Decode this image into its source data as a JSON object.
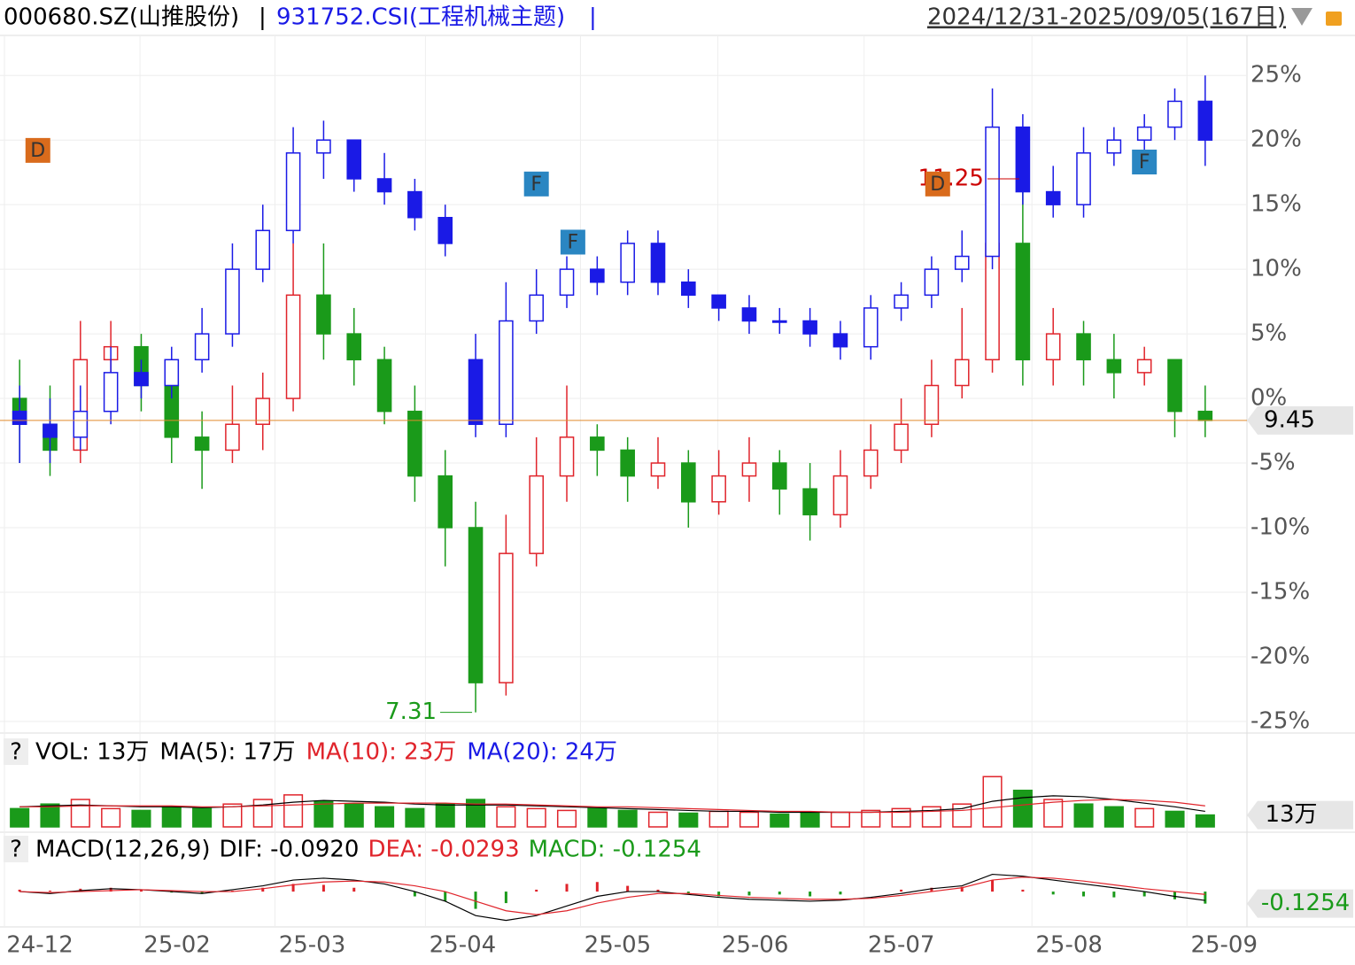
{
  "header": {
    "separator": "|",
    "range": "2024/12/31-2025/09/05(167日)",
    "help": "?"
  },
  "chart_data": [
    {
      "type": "candlestick",
      "series": [
        {
          "name": "000680.SZ(山推股份)",
          "color": "#e0242b",
          "down_color": "#1a9a1a",
          "open": [
            0,
            -2,
            -4,
            3,
            4,
            1,
            -3,
            -4,
            -2,
            0,
            8,
            5,
            3,
            -1,
            -6,
            -10,
            -22,
            -12,
            -6,
            -3,
            -4,
            -6,
            -5,
            -8,
            -6,
            -5,
            -7,
            -9,
            -6,
            -4,
            -2,
            1,
            3,
            12,
            3,
            5,
            3,
            2,
            3,
            -1
          ],
          "high": [
            3,
            1,
            6,
            6,
            5,
            3,
            -1,
            1,
            2,
            12,
            12,
            7,
            4,
            1,
            -4,
            -8,
            -9,
            -3,
            1,
            -2,
            -3,
            -3,
            -4,
            -4,
            -3,
            -4,
            -5,
            -4,
            -2,
            0,
            3,
            7,
            13,
            17,
            7,
            6,
            5,
            4,
            3,
            1
          ],
          "low": [
            -5,
            -6,
            -5,
            2,
            -1,
            -5,
            -7,
            -5,
            -4,
            -1,
            3,
            1,
            -2,
            -8,
            -13,
            -24.3,
            -23,
            -13,
            -8,
            -6,
            -8,
            -7,
            -10,
            -9,
            -8,
            -9,
            -11,
            -10,
            -7,
            -5,
            -3,
            0,
            2,
            1,
            1,
            1,
            0,
            1,
            -3,
            -3
          ],
          "close": [
            -2,
            -4,
            3,
            4,
            1,
            -3,
            -4,
            -2,
            0,
            8,
            5,
            3,
            -1,
            -6,
            -10,
            -22,
            -12,
            -6,
            -3,
            -4,
            -6,
            -5,
            -8,
            -6,
            -5,
            -7,
            -9,
            -6,
            -4,
            -2,
            1,
            3,
            12,
            3,
            5,
            3,
            2,
            3,
            -1,
            -1.7
          ]
        },
        {
          "name": "931752.CSI(工程机械主题)",
          "color": "#1a1ae6",
          "down_color": "#1a1ae6",
          "open": [
            -1,
            -2,
            -3,
            -1,
            2,
            1,
            3,
            5,
            10,
            13,
            19,
            20,
            17,
            16,
            14,
            3,
            -2,
            6,
            8,
            10,
            9,
            12,
            9,
            8,
            7,
            6,
            6,
            5,
            4,
            7,
            8,
            10,
            11,
            21,
            16,
            15,
            19,
            20,
            21,
            23
          ],
          "high": [
            1,
            0,
            1,
            4,
            3,
            4,
            7,
            12,
            15,
            21,
            21.5,
            20,
            19,
            17,
            15,
            5,
            9,
            10,
            11,
            11,
            13,
            13,
            10,
            8,
            8,
            7,
            7,
            6,
            8,
            9,
            11,
            13,
            24,
            22,
            18,
            21,
            21,
            22,
            24,
            25
          ],
          "low": [
            -5,
            -5,
            -4,
            -2,
            0,
            0,
            2,
            4,
            9,
            12,
            17,
            16,
            15,
            13,
            11,
            -3,
            -3,
            5,
            7,
            8,
            8,
            8,
            7,
            6,
            5,
            5,
            4,
            3,
            3,
            6,
            7,
            9,
            10,
            15,
            14,
            14,
            18,
            19,
            20,
            18
          ],
          "close": [
            -2,
            -3,
            -1,
            2,
            1,
            3,
            5,
            10,
            13,
            19,
            20,
            17,
            16,
            14,
            12,
            -2,
            6,
            8,
            10,
            9,
            12,
            9,
            8,
            7,
            6,
            6,
            5,
            4,
            7,
            8,
            10,
            11,
            21,
            16,
            15,
            19,
            20,
            21,
            23,
            20
          ]
        }
      ],
      "ylim": [
        -25.9,
        28.1
      ],
      "yticks": [
        {
          "value": 25,
          "label": "25%"
        },
        {
          "value": 20,
          "label": "20%"
        },
        {
          "value": 15,
          "label": "15%"
        },
        {
          "value": 10,
          "label": "10%"
        },
        {
          "value": 5,
          "label": "5%"
        },
        {
          "value": 0,
          "label": "0%"
        },
        {
          "value": -5,
          "label": "-5%"
        },
        {
          "value": -10,
          "label": "-10%"
        },
        {
          "value": -15,
          "label": "-15%"
        },
        {
          "value": -20,
          "label": "-20%"
        },
        {
          "value": -25,
          "label": "-25%"
        }
      ],
      "xlim": [
        0,
        40
      ],
      "xticks": [
        {
          "value": 0,
          "label": "24-12"
        },
        {
          "value": 4.46,
          "label": "25-02"
        },
        {
          "value": 8.9,
          "label": "25-03"
        },
        {
          "value": 13.85,
          "label": "25-04"
        },
        {
          "value": 18.95,
          "label": "25-05"
        },
        {
          "value": 23.47,
          "label": "25-06"
        },
        {
          "value": 28.28,
          "label": "25-07"
        },
        {
          "value": 33.8,
          "label": "25-08"
        },
        {
          "value": 38.9,
          "label": "25-09"
        }
      ],
      "markers": [
        {
          "label": "D",
          "x": 1.1,
          "y": 19.2,
          "color": "#d96b1c"
        },
        {
          "label": "F",
          "x": 17.5,
          "y": 16.6,
          "color": "#2a86c2"
        },
        {
          "label": "F",
          "x": 18.7,
          "y": 12.1,
          "color": "#2a86c2"
        },
        {
          "label": "D",
          "x": 30.7,
          "y": 16.6,
          "color": "#d96b1c"
        },
        {
          "label": "F",
          "x": 37.5,
          "y": 18.3,
          "color": "#2a86c2"
        }
      ],
      "low_label": "7.31",
      "high_label": "11.25",
      "last_label": "9.45",
      "price_line_color": "#e08a2c"
    },
    {
      "type": "bar",
      "legend": [
        {
          "text": "VOL: 13万",
          "color": "#000"
        },
        {
          "text": "MA(5): 17万",
          "color": "#000"
        },
        {
          "text": "MA(10): 23万",
          "color": "#e0242b"
        },
        {
          "text": "MA(20): 24万",
          "color": "#1a1ae6"
        }
      ],
      "values": [
        20,
        25,
        30,
        20,
        18,
        22,
        20,
        25,
        30,
        35,
        28,
        25,
        22,
        20,
        25,
        30,
        22,
        20,
        18,
        20,
        18,
        16,
        15,
        17,
        16,
        14,
        15,
        16,
        18,
        20,
        22,
        25,
        55,
        40,
        30,
        25,
        22,
        20,
        17,
        13
      ],
      "lines": [
        {
          "color": "#000",
          "values": [
            22,
            23,
            24,
            23,
            22,
            22,
            21,
            22,
            24,
            27,
            29,
            28,
            27,
            25,
            24,
            24,
            24,
            23,
            22,
            21,
            20,
            19,
            18,
            17,
            17,
            16,
            16,
            16,
            16,
            17,
            18,
            20,
            28,
            32,
            34,
            33,
            30,
            26,
            22,
            17
          ]
        },
        {
          "color": "#e0242b",
          "values": [
            22,
            22,
            23,
            23,
            23,
            23,
            22,
            22,
            23,
            24,
            25,
            26,
            26,
            26,
            26,
            25,
            25,
            24,
            23,
            22,
            22,
            21,
            20,
            19,
            18,
            17,
            17,
            16,
            16,
            16,
            17,
            18,
            21,
            24,
            27,
            29,
            30,
            29,
            27,
            23
          ]
        }
      ],
      "ylim": [
        0,
        62
      ],
      "last": {
        "value": 13,
        "label": "13万"
      }
    },
    {
      "type": "macd",
      "legend": [
        {
          "text": "MACD(12,26,9)",
          "color": "#000"
        },
        {
          "text": "DIF: -0.0920",
          "color": "#000"
        },
        {
          "text": "DEA: -0.0293",
          "color": "#e0242b"
        },
        {
          "text": "MACD: -0.1254",
          "color": "#1a9a1a"
        }
      ],
      "values": [
        0.02,
        0.01,
        0.03,
        0.04,
        0.02,
        -0.01,
        -0.02,
        0.01,
        0.04,
        0.08,
        0.07,
        0.04,
        0.0,
        -0.05,
        -0.1,
        -0.18,
        -0.12,
        0.02,
        0.08,
        0.1,
        0.06,
        0.02,
        -0.03,
        -0.05,
        -0.04,
        -0.03,
        -0.05,
        -0.03,
        0.0,
        0.02,
        0.04,
        0.05,
        0.12,
        0.02,
        -0.03,
        -0.05,
        -0.06,
        -0.05,
        -0.08,
        -0.1254
      ],
      "lines": [
        {
          "color": "#000",
          "values": [
            0,
            -0.02,
            0.01,
            0.03,
            0.02,
            0,
            -0.02,
            0.02,
            0.06,
            0.12,
            0.14,
            0.12,
            0.08,
            0.0,
            -0.1,
            -0.25,
            -0.3,
            -0.25,
            -0.15,
            -0.05,
            0.0,
            0.0,
            -0.03,
            -0.06,
            -0.08,
            -0.09,
            -0.1,
            -0.09,
            -0.06,
            -0.02,
            0.03,
            0.06,
            0.18,
            0.16,
            0.12,
            0.08,
            0.04,
            0.0,
            -0.05,
            -0.092
          ]
        },
        {
          "color": "#e0242b",
          "values": [
            0,
            -0.01,
            0,
            0.01,
            0.02,
            0.01,
            0,
            0,
            0.03,
            0.07,
            0.1,
            0.11,
            0.1,
            0.06,
            0,
            -0.1,
            -0.2,
            -0.24,
            -0.2,
            -0.12,
            -0.06,
            -0.02,
            -0.02,
            -0.04,
            -0.06,
            -0.07,
            -0.08,
            -0.08,
            -0.07,
            -0.04,
            0,
            0.04,
            0.12,
            0.15,
            0.14,
            0.11,
            0.07,
            0.03,
            0,
            -0.0293
          ]
        }
      ],
      "ylim": [
        -0.35,
        0.25
      ],
      "last": -0.1254
    }
  ]
}
